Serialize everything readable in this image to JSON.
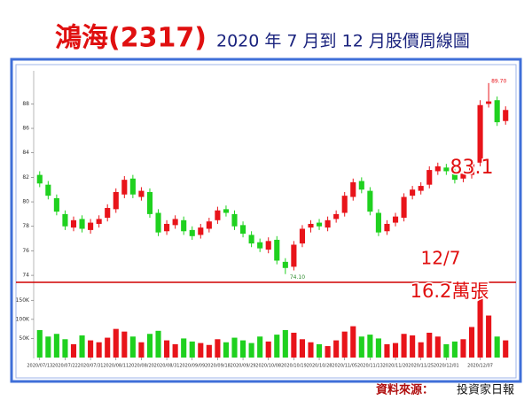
{
  "chart_data": {
    "type": "candlestick",
    "title": "鴻海(2317)",
    "subtitle": "2020 年 7 月到 12 月股價周線圖",
    "categories": [
      "2020/07/13",
      null,
      null,
      "2020/07/22",
      null,
      null,
      "2020/07/31",
      null,
      null,
      "2020/08/11",
      null,
      null,
      "2020/08/20",
      null,
      null,
      "2020/08/31",
      null,
      null,
      "2020/09/09",
      null,
      null,
      "2020/09/18",
      null,
      null,
      "2020/09/29",
      null,
      null,
      "2020/10/08",
      null,
      null,
      "2020/10/19",
      null,
      null,
      "2020/10/28",
      null,
      null,
      "2020/11/05",
      null,
      null,
      "2020/11/13",
      null,
      null,
      "2020/11/20",
      null,
      null,
      "2020/11/25",
      null,
      null,
      "2020/12/01",
      null,
      null,
      null,
      "2020/12/07",
      null,
      null,
      null
    ],
    "open": [
      82.2,
      81.4,
      80.3,
      79.0,
      77.9,
      78.6,
      77.7,
      78.2,
      78.7,
      79.4,
      80.6,
      81.9,
      80.4,
      80.8,
      79.1,
      77.6,
      78.1,
      78.5,
      77.7,
      77.3,
      77.8,
      78.5,
      79.4,
      79.0,
      78.1,
      77.3,
      76.7,
      76.1,
      76.9,
      75.1,
      74.7,
      76.6,
      77.9,
      78.3,
      77.9,
      78.6,
      79.1,
      80.4,
      81.7,
      80.9,
      79.1,
      77.6,
      78.3,
      78.7,
      80.5,
      80.9,
      81.4,
      82.5,
      82.8,
      82.4,
      81.9,
      82.2,
      83.2,
      88.0,
      88.3,
      86.6
    ],
    "high": [
      82.5,
      81.7,
      80.6,
      79.3,
      78.8,
      78.9,
      78.6,
      78.9,
      79.8,
      81.1,
      82.1,
      82.2,
      81.2,
      81.1,
      79.4,
      78.5,
      78.9,
      78.8,
      78.0,
      78.2,
      78.7,
      79.6,
      79.7,
      79.3,
      78.4,
      77.6,
      77.0,
      77.1,
      77.2,
      75.4,
      76.8,
      78.1,
      78.5,
      78.6,
      78.8,
      79.3,
      80.8,
      81.9,
      82.0,
      81.2,
      79.4,
      78.5,
      79.1,
      80.7,
      81.3,
      81.6,
      82.9,
      83.2,
      83.1,
      82.7,
      82.6,
      83.4,
      88.3,
      89.7,
      88.6,
      87.8
    ],
    "low": [
      81.2,
      80.2,
      78.9,
      77.7,
      77.6,
      77.5,
      77.4,
      77.9,
      78.4,
      79.1,
      80.3,
      80.3,
      80.1,
      78.7,
      77.2,
      77.3,
      77.8,
      77.3,
      76.9,
      77.0,
      77.5,
      78.2,
      78.8,
      77.7,
      77.1,
      76.3,
      75.9,
      75.8,
      74.9,
      74.1,
      74.4,
      76.3,
      77.5,
      77.7,
      77.6,
      78.3,
      78.8,
      80.1,
      80.7,
      78.9,
      77.2,
      77.3,
      78.0,
      78.4,
      80.2,
      80.6,
      81.1,
      82.2,
      82.2,
      81.5,
      81.6,
      81.9,
      82.9,
      87.7,
      86.2,
      86.3
    ],
    "close": [
      81.5,
      80.5,
      79.2,
      78.0,
      78.5,
      77.8,
      78.3,
      78.6,
      79.5,
      80.8,
      81.8,
      80.6,
      80.9,
      79.0,
      77.5,
      78.2,
      78.6,
      77.6,
      77.2,
      77.9,
      78.4,
      79.3,
      79.1,
      78.0,
      77.4,
      76.6,
      76.2,
      76.8,
      75.2,
      74.6,
      76.5,
      77.8,
      78.2,
      78.0,
      78.5,
      79.0,
      80.5,
      81.6,
      81.0,
      79.2,
      77.5,
      78.2,
      78.8,
      80.4,
      81.0,
      81.3,
      82.6,
      82.9,
      82.5,
      81.8,
      82.3,
      83.1,
      87.9,
      88.2,
      86.5,
      87.5
    ],
    "volume": [
      72000,
      55000,
      62000,
      48000,
      35000,
      58000,
      45000,
      40000,
      52000,
      75000,
      68000,
      55000,
      40000,
      62000,
      70000,
      45000,
      35000,
      50000,
      42000,
      38000,
      33000,
      48000,
      40000,
      52000,
      45000,
      38000,
      55000,
      42000,
      60000,
      72000,
      65000,
      48000,
      40000,
      35000,
      30000,
      45000,
      68000,
      82000,
      55000,
      60000,
      50000,
      35000,
      38000,
      62000,
      58000,
      40000,
      65000,
      55000,
      35000,
      42000,
      48000,
      80000,
      162000,
      110000,
      55000,
      45000
    ],
    "up_color": "#e8141a",
    "down_color": "#1fd11f",
    "ylim": [
      73.5,
      90.7
    ],
    "yticks": [
      74,
      76,
      78,
      80,
      82,
      84,
      86,
      88
    ],
    "volume_ylim": [
      0,
      190000
    ],
    "volume_yticks": [
      {
        "value": 50000,
        "label": "50K"
      },
      {
        "value": 100000,
        "label": "100K"
      },
      {
        "value": 150000,
        "label": "150K"
      }
    ],
    "low_annotation": {
      "value": 74.1,
      "label": "74.10"
    },
    "high_annotation": {
      "value": 89.7,
      "label": "89.70"
    },
    "annotations": [
      "83.1",
      "12/7",
      "16.2萬張"
    ],
    "source_label": "資料來源：",
    "source": "投資家日報"
  }
}
